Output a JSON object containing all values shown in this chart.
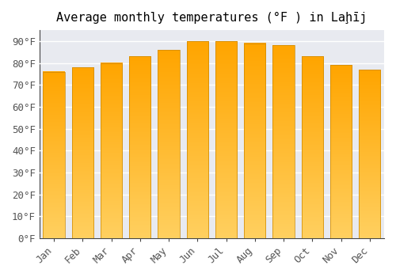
{
  "title": "Average monthly temperatures (°F ) in Laḩīj",
  "months": [
    "Jan",
    "Feb",
    "Mar",
    "Apr",
    "May",
    "Jun",
    "Jul",
    "Aug",
    "Sep",
    "Oct",
    "Nov",
    "Dec"
  ],
  "values": [
    76,
    78,
    80,
    83,
    86,
    90,
    90,
    89,
    88,
    83,
    79,
    77
  ],
  "bar_color": "#FFA500",
  "bar_edge_color": "#CC8800",
  "background_color": "#ffffff",
  "plot_bg_color": "#e8eaf0",
  "grid_color": "#ffffff",
  "ylim": [
    0,
    95
  ],
  "yticks": [
    0,
    10,
    20,
    30,
    40,
    50,
    60,
    70,
    80,
    90
  ],
  "ytick_labels": [
    "0°F",
    "10°F",
    "20°F",
    "30°F",
    "40°F",
    "50°F",
    "60°F",
    "70°F",
    "80°F",
    "90°F"
  ],
  "title_fontsize": 11,
  "tick_fontsize": 9,
  "bar_width": 0.75,
  "grad_color_bottom": "#FFD060",
  "grad_color_top": "#FFA500"
}
